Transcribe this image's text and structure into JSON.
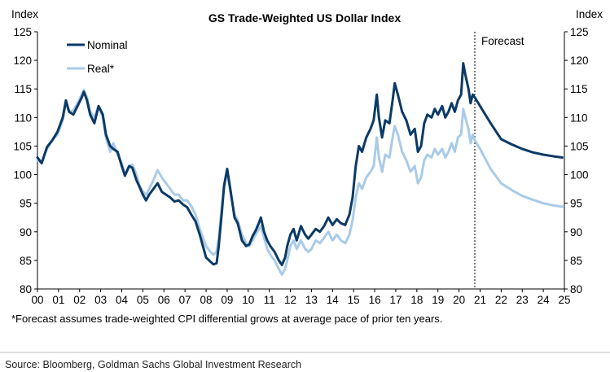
{
  "chart_data": {
    "type": "line",
    "title": "GS Trade-Weighted US Dollar Index",
    "ylabel_left": "Index",
    "ylabel_right": "Index",
    "ylim": [
      80,
      125
    ],
    "yticks": [
      80,
      85,
      90,
      95,
      100,
      105,
      110,
      115,
      120,
      125
    ],
    "xlim": [
      2000,
      2025
    ],
    "xticks": [
      {
        "x": 2000,
        "label": "00"
      },
      {
        "x": 2001,
        "label": "01"
      },
      {
        "x": 2002,
        "label": "02"
      },
      {
        "x": 2003,
        "label": "03"
      },
      {
        "x": 2004,
        "label": "04"
      },
      {
        "x": 2005,
        "label": "05"
      },
      {
        "x": 2006,
        "label": "06"
      },
      {
        "x": 2007,
        "label": "07"
      },
      {
        "x": 2008,
        "label": "08"
      },
      {
        "x": 2009,
        "label": "09"
      },
      {
        "x": 2010,
        "label": "10"
      },
      {
        "x": 2011,
        "label": "11"
      },
      {
        "x": 2012,
        "label": "12"
      },
      {
        "x": 2013,
        "label": "13"
      },
      {
        "x": 2014,
        "label": "14"
      },
      {
        "x": 2015,
        "label": "15"
      },
      {
        "x": 2016,
        "label": "16"
      },
      {
        "x": 2017,
        "label": "17"
      },
      {
        "x": 2018,
        "label": "18"
      },
      {
        "x": 2019,
        "label": "19"
      },
      {
        "x": 2020,
        "label": "20"
      },
      {
        "x": 2021,
        "label": "21"
      },
      {
        "x": 2022,
        "label": "22"
      },
      {
        "x": 2023,
        "label": "23"
      },
      {
        "x": 2024,
        "label": "24"
      },
      {
        "x": 2025,
        "label": "25"
      }
    ],
    "forecast_start": 2020.75,
    "forecast_label": "Forecast",
    "legend_position": "top-left",
    "footnote": "*Forecast assumes trade-weighted CPI differential grows at average pace of prior ten years.",
    "source": "Source: Bloomberg, Goldman Sachs Global Investment Research",
    "series": [
      {
        "name": "Nominal",
        "color": "#0b3a66",
        "points": [
          [
            2000.0,
            103.0
          ],
          [
            2000.2,
            102.0
          ],
          [
            2000.45,
            104.8
          ],
          [
            2000.7,
            106.0
          ],
          [
            2000.95,
            107.5
          ],
          [
            2001.2,
            110.0
          ],
          [
            2001.35,
            113.0
          ],
          [
            2001.5,
            111.0
          ],
          [
            2001.7,
            110.5
          ],
          [
            2001.9,
            112.0
          ],
          [
            2002.1,
            113.5
          ],
          [
            2002.2,
            114.5
          ],
          [
            2002.35,
            113.0
          ],
          [
            2002.5,
            110.5
          ],
          [
            2002.7,
            109.0
          ],
          [
            2002.9,
            112.0
          ],
          [
            2003.1,
            110.5
          ],
          [
            2003.25,
            107.0
          ],
          [
            2003.45,
            105.0
          ],
          [
            2003.6,
            104.5
          ],
          [
            2003.8,
            104.0
          ],
          [
            2004.0,
            101.5
          ],
          [
            2004.15,
            99.8
          ],
          [
            2004.35,
            101.5
          ],
          [
            2004.5,
            101.2
          ],
          [
            2004.7,
            99.0
          ],
          [
            2004.85,
            97.8
          ],
          [
            2005.0,
            96.5
          ],
          [
            2005.15,
            95.5
          ],
          [
            2005.3,
            96.5
          ],
          [
            2005.5,
            97.5
          ],
          [
            2005.7,
            98.5
          ],
          [
            2005.9,
            97.0
          ],
          [
            2006.1,
            96.5
          ],
          [
            2006.3,
            96.0
          ],
          [
            2006.5,
            95.3
          ],
          [
            2006.7,
            95.5
          ],
          [
            2006.9,
            94.8
          ],
          [
            2007.1,
            94.3
          ],
          [
            2007.3,
            93.0
          ],
          [
            2007.5,
            91.8
          ],
          [
            2007.7,
            89.5
          ],
          [
            2007.85,
            87.5
          ],
          [
            2008.0,
            85.5
          ],
          [
            2008.2,
            84.8
          ],
          [
            2008.35,
            84.3
          ],
          [
            2008.5,
            84.5
          ],
          [
            2008.6,
            87.5
          ],
          [
            2008.75,
            93.5
          ],
          [
            2008.85,
            98.0
          ],
          [
            2009.0,
            101.0
          ],
          [
            2009.15,
            97.5
          ],
          [
            2009.35,
            92.5
          ],
          [
            2009.5,
            91.5
          ],
          [
            2009.7,
            88.5
          ],
          [
            2009.9,
            87.5
          ],
          [
            2010.05,
            87.8
          ],
          [
            2010.2,
            89.2
          ],
          [
            2010.35,
            90.2
          ],
          [
            2010.5,
            91.5
          ],
          [
            2010.6,
            92.5
          ],
          [
            2010.75,
            90.0
          ],
          [
            2010.9,
            88.5
          ],
          [
            2011.05,
            87.5
          ],
          [
            2011.25,
            86.5
          ],
          [
            2011.45,
            85.0
          ],
          [
            2011.6,
            84.2
          ],
          [
            2011.75,
            85.5
          ],
          [
            2011.85,
            87.5
          ],
          [
            2012.0,
            89.5
          ],
          [
            2012.15,
            90.5
          ],
          [
            2012.3,
            88.5
          ],
          [
            2012.5,
            91.0
          ],
          [
            2012.7,
            89.5
          ],
          [
            2012.85,
            88.8
          ],
          [
            2013.0,
            89.5
          ],
          [
            2013.2,
            90.5
          ],
          [
            2013.4,
            90.0
          ],
          [
            2013.6,
            91.0
          ],
          [
            2013.8,
            92.5
          ],
          [
            2014.0,
            91.2
          ],
          [
            2014.2,
            92.2
          ],
          [
            2014.4,
            91.5
          ],
          [
            2014.6,
            91.2
          ],
          [
            2014.8,
            93.0
          ],
          [
            2014.95,
            96.0
          ],
          [
            2015.1,
            101.5
          ],
          [
            2015.25,
            105.0
          ],
          [
            2015.4,
            104.0
          ],
          [
            2015.6,
            106.5
          ],
          [
            2015.8,
            108.0
          ],
          [
            2015.95,
            109.5
          ],
          [
            2016.1,
            114.0
          ],
          [
            2016.2,
            110.0
          ],
          [
            2016.35,
            106.5
          ],
          [
            2016.5,
            109.5
          ],
          [
            2016.7,
            109.0
          ],
          [
            2016.85,
            113.0
          ],
          [
            2016.95,
            116.0
          ],
          [
            2017.1,
            114.0
          ],
          [
            2017.3,
            111.0
          ],
          [
            2017.5,
            109.5
          ],
          [
            2017.7,
            107.0
          ],
          [
            2017.9,
            108.0
          ],
          [
            2018.05,
            104.0
          ],
          [
            2018.2,
            105.0
          ],
          [
            2018.35,
            109.0
          ],
          [
            2018.5,
            110.5
          ],
          [
            2018.7,
            110.0
          ],
          [
            2018.85,
            111.5
          ],
          [
            2019.0,
            110.5
          ],
          [
            2019.2,
            112.0
          ],
          [
            2019.35,
            110.0
          ],
          [
            2019.5,
            111.0
          ],
          [
            2019.65,
            112.5
          ],
          [
            2019.8,
            111.0
          ],
          [
            2019.95,
            113.0
          ],
          [
            2020.1,
            114.0
          ],
          [
            2020.2,
            119.5
          ],
          [
            2020.3,
            117.5
          ],
          [
            2020.45,
            115.0
          ],
          [
            2020.55,
            112.5
          ],
          [
            2020.65,
            114.0
          ],
          [
            2020.75,
            113.5
          ],
          [
            2021.0,
            112.0
          ],
          [
            2021.5,
            109.0
          ],
          [
            2022.0,
            106.2
          ],
          [
            2022.5,
            105.3
          ],
          [
            2023.0,
            104.5
          ],
          [
            2023.5,
            103.9
          ],
          [
            2024.0,
            103.5
          ],
          [
            2024.5,
            103.2
          ],
          [
            2024.9,
            103.0
          ]
        ]
      },
      {
        "name": "Real*",
        "color": "#a9cbe8",
        "points": [
          [
            2000.0,
            102.5
          ],
          [
            2000.2,
            102.2
          ],
          [
            2000.45,
            104.5
          ],
          [
            2000.7,
            106.0
          ],
          [
            2000.95,
            107.0
          ],
          [
            2001.2,
            109.5
          ],
          [
            2001.35,
            112.5
          ],
          [
            2001.5,
            111.0
          ],
          [
            2001.7,
            111.2
          ],
          [
            2001.9,
            112.5
          ],
          [
            2002.1,
            114.0
          ],
          [
            2002.2,
            114.8
          ],
          [
            2002.35,
            113.5
          ],
          [
            2002.5,
            111.0
          ],
          [
            2002.7,
            110.0
          ],
          [
            2002.9,
            112.0
          ],
          [
            2003.1,
            110.0
          ],
          [
            2003.25,
            106.5
          ],
          [
            2003.45,
            104.0
          ],
          [
            2003.6,
            105.5
          ],
          [
            2003.8,
            103.5
          ],
          [
            2004.0,
            102.0
          ],
          [
            2004.15,
            100.0
          ],
          [
            2004.35,
            101.5
          ],
          [
            2004.5,
            101.8
          ],
          [
            2004.7,
            100.0
          ],
          [
            2004.85,
            98.0
          ],
          [
            2005.0,
            97.0
          ],
          [
            2005.15,
            96.5
          ],
          [
            2005.3,
            97.5
          ],
          [
            2005.5,
            99.0
          ],
          [
            2005.7,
            100.8
          ],
          [
            2005.9,
            99.5
          ],
          [
            2006.1,
            98.5
          ],
          [
            2006.3,
            97.5
          ],
          [
            2006.5,
            96.5
          ],
          [
            2006.7,
            96.5
          ],
          [
            2006.9,
            95.5
          ],
          [
            2007.1,
            95.5
          ],
          [
            2007.3,
            94.5
          ],
          [
            2007.5,
            93.0
          ],
          [
            2007.7,
            90.5
          ],
          [
            2007.85,
            89.0
          ],
          [
            2008.0,
            87.5
          ],
          [
            2008.2,
            86.5
          ],
          [
            2008.35,
            86.0
          ],
          [
            2008.5,
            86.5
          ],
          [
            2008.6,
            89.0
          ],
          [
            2008.75,
            94.5
          ],
          [
            2008.85,
            97.5
          ],
          [
            2009.0,
            100.5
          ],
          [
            2009.15,
            97.0
          ],
          [
            2009.35,
            93.0
          ],
          [
            2009.5,
            92.0
          ],
          [
            2009.7,
            89.5
          ],
          [
            2009.9,
            88.0
          ],
          [
            2010.05,
            87.5
          ],
          [
            2010.2,
            88.5
          ],
          [
            2010.35,
            89.5
          ],
          [
            2010.5,
            90.5
          ],
          [
            2010.6,
            91.0
          ],
          [
            2010.75,
            89.0
          ],
          [
            2010.9,
            87.0
          ],
          [
            2011.05,
            86.0
          ],
          [
            2011.25,
            85.0
          ],
          [
            2011.45,
            83.5
          ],
          [
            2011.6,
            82.5
          ],
          [
            2011.75,
            83.5
          ],
          [
            2011.85,
            85.0
          ],
          [
            2012.0,
            87.5
          ],
          [
            2012.15,
            88.5
          ],
          [
            2012.3,
            87.0
          ],
          [
            2012.5,
            88.5
          ],
          [
            2012.7,
            87.0
          ],
          [
            2012.85,
            86.5
          ],
          [
            2013.0,
            87.0
          ],
          [
            2013.2,
            88.5
          ],
          [
            2013.4,
            88.0
          ],
          [
            2013.6,
            89.0
          ],
          [
            2013.8,
            90.0
          ],
          [
            2014.0,
            88.5
          ],
          [
            2014.2,
            89.5
          ],
          [
            2014.4,
            88.5
          ],
          [
            2014.6,
            88.0
          ],
          [
            2014.8,
            89.5
          ],
          [
            2014.95,
            92.0
          ],
          [
            2015.1,
            96.0
          ],
          [
            2015.25,
            98.5
          ],
          [
            2015.4,
            97.5
          ],
          [
            2015.6,
            99.5
          ],
          [
            2015.8,
            100.5
          ],
          [
            2015.95,
            101.5
          ],
          [
            2016.1,
            106.5
          ],
          [
            2016.2,
            103.0
          ],
          [
            2016.35,
            100.5
          ],
          [
            2016.5,
            103.5
          ],
          [
            2016.7,
            103.0
          ],
          [
            2016.85,
            106.5
          ],
          [
            2016.95,
            108.5
          ],
          [
            2017.1,
            107.0
          ],
          [
            2017.3,
            104.0
          ],
          [
            2017.5,
            102.5
          ],
          [
            2017.7,
            100.5
          ],
          [
            2017.9,
            101.5
          ],
          [
            2018.05,
            98.5
          ],
          [
            2018.2,
            99.5
          ],
          [
            2018.35,
            102.5
          ],
          [
            2018.5,
            103.5
          ],
          [
            2018.7,
            103.0
          ],
          [
            2018.85,
            104.5
          ],
          [
            2019.0,
            103.5
          ],
          [
            2019.2,
            104.5
          ],
          [
            2019.35,
            103.0
          ],
          [
            2019.5,
            104.0
          ],
          [
            2019.65,
            105.5
          ],
          [
            2019.8,
            104.0
          ],
          [
            2019.95,
            106.5
          ],
          [
            2020.1,
            107.0
          ],
          [
            2020.2,
            111.5
          ],
          [
            2020.3,
            110.0
          ],
          [
            2020.45,
            108.0
          ],
          [
            2020.55,
            105.5
          ],
          [
            2020.65,
            107.0
          ],
          [
            2020.75,
            106.0
          ],
          [
            2021.0,
            104.5
          ],
          [
            2021.5,
            101.0
          ],
          [
            2022.0,
            98.5
          ],
          [
            2022.5,
            97.3
          ],
          [
            2023.0,
            96.3
          ],
          [
            2023.5,
            95.6
          ],
          [
            2024.0,
            95.0
          ],
          [
            2024.5,
            94.6
          ],
          [
            2024.9,
            94.4
          ]
        ]
      }
    ]
  }
}
